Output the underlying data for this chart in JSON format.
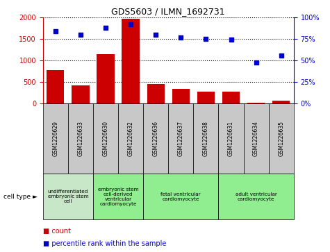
{
  "title": "GDS5603 / ILMN_1692731",
  "samples": [
    "GSM1226629",
    "GSM1226633",
    "GSM1226630",
    "GSM1226632",
    "GSM1226636",
    "GSM1226637",
    "GSM1226638",
    "GSM1226631",
    "GSM1226634",
    "GSM1226635"
  ],
  "counts": [
    780,
    420,
    1150,
    1980,
    450,
    335,
    275,
    265,
    15,
    60
  ],
  "percentiles": [
    84,
    80,
    88,
    92,
    80,
    77,
    75,
    74,
    48,
    56
  ],
  "ylim_left": [
    0,
    2000
  ],
  "ylim_right": [
    0,
    100
  ],
  "yticks_left": [
    0,
    500,
    1000,
    1500,
    2000
  ],
  "ytick_labels_left": [
    "0",
    "500",
    "1000",
    "1500",
    "2000"
  ],
  "yticks_right": [
    0,
    25,
    50,
    75,
    100
  ],
  "ytick_labels_right": [
    "0%",
    "25%",
    "50%",
    "75%",
    "100%"
  ],
  "bar_color": "#cc0000",
  "dot_color": "#0000cc",
  "cell_type_groups": [
    {
      "label": "undifferentiated\nembryonic stem\ncell",
      "start": 0,
      "end": 2,
      "color": "#c8e6c8"
    },
    {
      "label": "embryonic stem\ncell-derived\nventricular\ncardiomyocyte",
      "start": 2,
      "end": 4,
      "color": "#90ee90"
    },
    {
      "label": "fetal ventricular\ncardiomyocyte",
      "start": 4,
      "end": 7,
      "color": "#90ee90"
    },
    {
      "label": "adult ventricular\ncardiomyocyte",
      "start": 7,
      "end": 10,
      "color": "#90ee90"
    }
  ],
  "cell_type_label": "cell type",
  "legend_count_label": "count",
  "legend_percentile_label": "percentile rank within the sample",
  "bar_color_r": "#cc0000",
  "dot_color_b": "#0000cc",
  "tick_color_left": "#cc0000",
  "tick_color_right": "#0000cc",
  "sample_box_color": "#c8c8c8",
  "grid_color": "black",
  "grid_style": "dotted"
}
